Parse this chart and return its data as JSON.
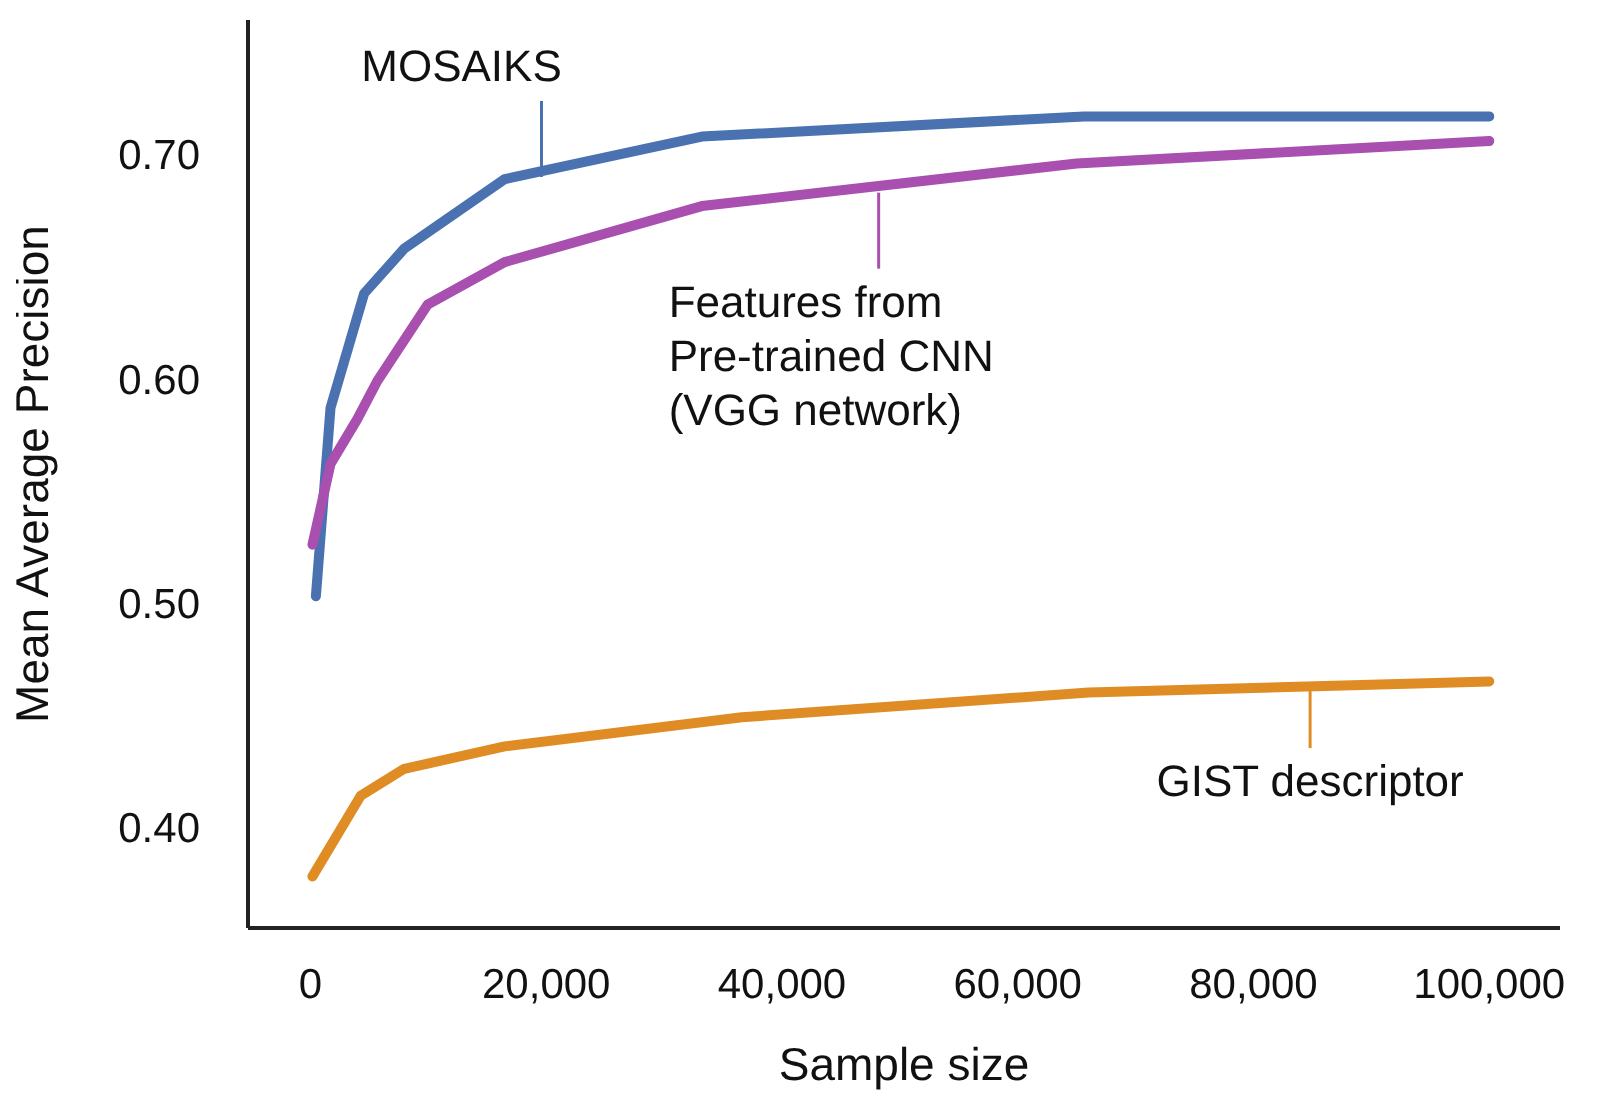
{
  "chart_data": {
    "type": "line",
    "xlabel": "Sample size",
    "ylabel": "Mean Average Precision",
    "xlim": [
      -5300,
      106000
    ],
    "xticks": [
      0,
      {
        "value": 20000,
        "label": "20,000"
      },
      {
        "value": 40000,
        "label": "40,000"
      },
      {
        "value": 60000,
        "label": "60,000"
      },
      {
        "value": 80000,
        "label": "80,000"
      },
      {
        "value": 100000,
        "label": "100,000"
      }
    ],
    "ylim": [
      0.355,
      0.76
    ],
    "yticks": [
      {
        "value": 0.4,
        "label": "0.40"
      },
      {
        "value": 0.5,
        "label": "0.50"
      },
      {
        "value": 0.6,
        "label": "0.60"
      },
      {
        "value": 0.7,
        "label": "0.70"
      }
    ],
    "grid": false,
    "legend": false,
    "marker": "none",
    "line_style": "solid",
    "series": [
      {
        "color": "#4a72b0",
        "x": [
          460,
          1700,
          4550,
          7950,
          16470,
          33200,
          65600,
          100000
        ],
        "values": [
          0.503,
          0.587,
          0.638,
          0.658,
          0.689,
          0.708,
          0.717,
          0.717
        ]
      },
      {
        "color": "#a84fb0",
        "x": [
          170,
          1700,
          3970,
          5670,
          9930,
          16470,
          33200,
          65000,
          100000
        ],
        "values": [
          0.526,
          0.562,
          0.582,
          0.599,
          0.633,
          0.652,
          0.677,
          0.696,
          0.706
        ]
      },
      {
        "color": "#e08c25",
        "x": [
          170,
          4260,
          7950,
          16470,
          36600,
          66000,
          100000
        ],
        "values": [
          0.378,
          0.414,
          0.426,
          0.436,
          0.449,
          0.46,
          0.465
        ]
      }
    ],
    "annotations": [
      {
        "text": "MOSAIKS",
        "x": 19600,
        "y": 0.69
      },
      {
        "text": "Features from\nPre-trained CNN\n(VGG network)",
        "x": 48200,
        "y": 0.683
      },
      {
        "text": "GIST descriptor",
        "x": 84800,
        "y": 0.462
      }
    ]
  }
}
